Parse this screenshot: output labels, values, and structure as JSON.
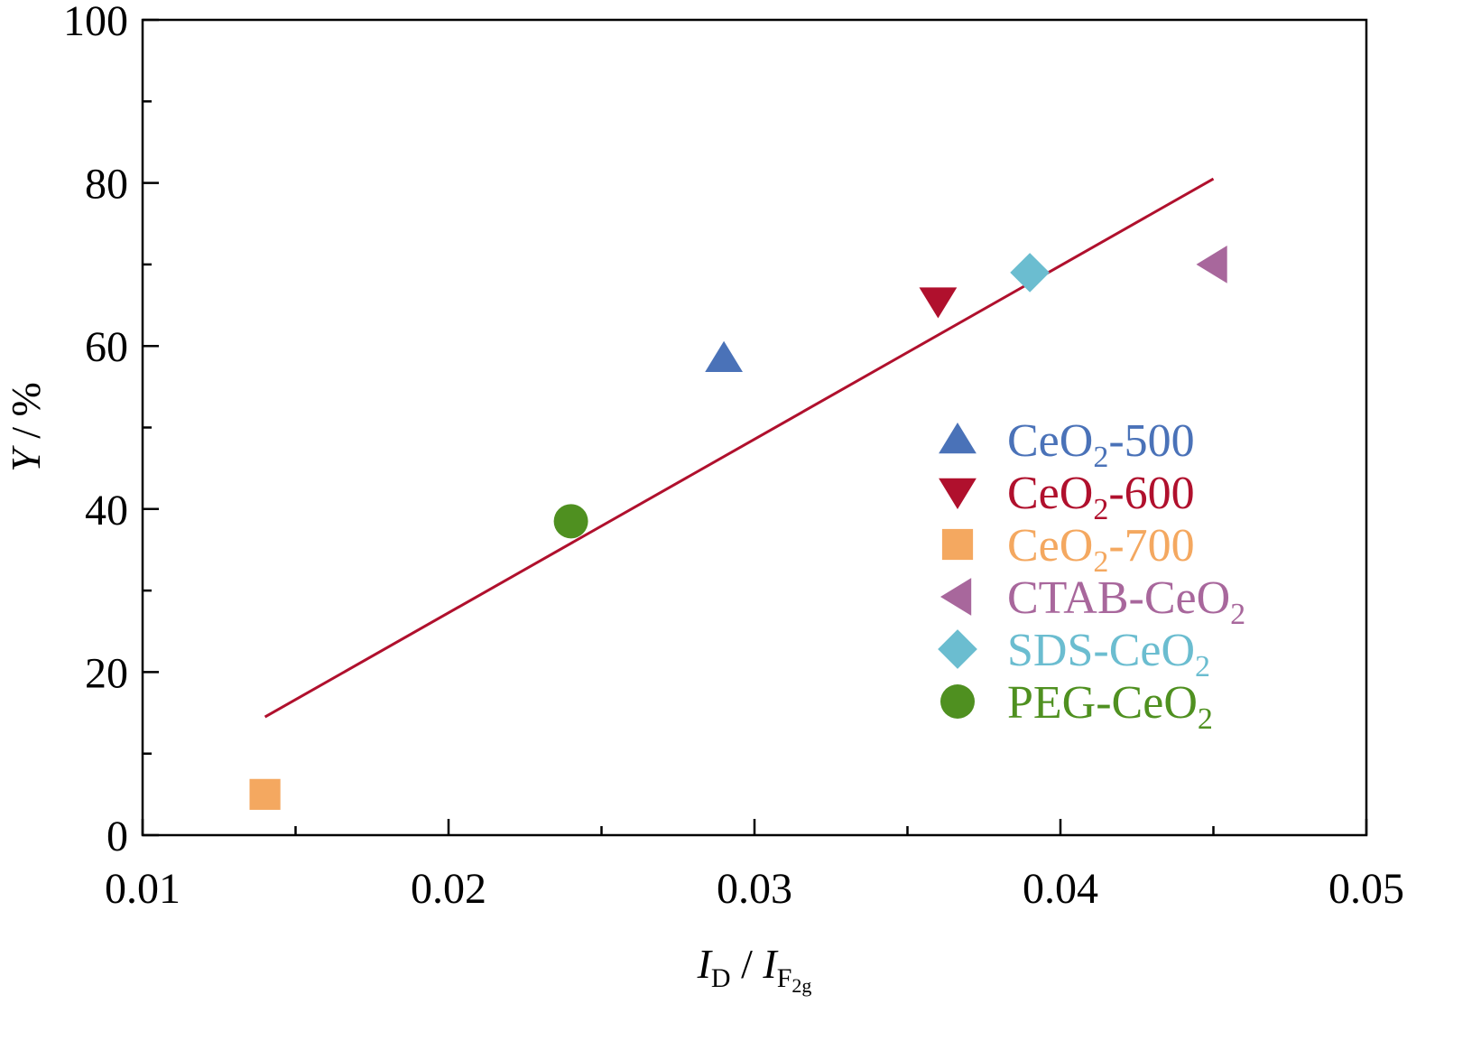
{
  "chart_data": {
    "type": "scatter",
    "xlabel": {
      "main": "I",
      "sub1": "D",
      "sep": " / ",
      "main2": "I",
      "sub2": "F",
      "subsub2": "2g"
    },
    "ylabel": {
      "var": "Y",
      "rest": " / %"
    },
    "xlim": [
      0.01,
      0.05
    ],
    "ylim": [
      0,
      100
    ],
    "xticks": [
      0.01,
      0.02,
      0.03,
      0.04,
      0.05
    ],
    "xtick_labels": [
      "0.01",
      "0.02",
      "0.03",
      "0.04",
      "0.05"
    ],
    "yticks": [
      0,
      20,
      40,
      60,
      80,
      100
    ],
    "ytick_labels": [
      "0",
      "20",
      "40",
      "60",
      "80",
      "100"
    ],
    "x_minor_step": 0.005,
    "y_minor_step": 10,
    "grid": false,
    "legend_position": "lower-right",
    "series": [
      {
        "name": "CeO2-500",
        "label": {
          "pre": "CeO",
          "sub": "2",
          "post": "-500"
        },
        "marker": "triangle-up",
        "color": "#4a72b8",
        "points": [
          [
            0.029,
            58.5
          ]
        ]
      },
      {
        "name": "CeO2-600",
        "label": {
          "pre": "CeO",
          "sub": "2",
          "post": "-600"
        },
        "marker": "triangle-down",
        "color": "#b0102d",
        "points": [
          [
            0.036,
            65.5
          ]
        ]
      },
      {
        "name": "CeO2-700",
        "label": {
          "pre": "CeO",
          "sub": "2",
          "post": "-700"
        },
        "marker": "square",
        "color": "#f4a860",
        "points": [
          [
            0.014,
            5
          ]
        ]
      },
      {
        "name": "CTAB-CeO2",
        "label": {
          "pre": "CTAB-CeO",
          "sub": "2",
          "post": ""
        },
        "marker": "triangle-left",
        "color": "#a8679c",
        "points": [
          [
            0.045,
            70
          ]
        ]
      },
      {
        "name": "SDS-CeO2",
        "label": {
          "pre": "SDS-CeO",
          "sub": "2",
          "post": ""
        },
        "marker": "diamond",
        "color": "#6bbdd0",
        "points": [
          [
            0.039,
            69
          ]
        ]
      },
      {
        "name": "PEG-CeO2",
        "label": {
          "pre": "PEG-CeO",
          "sub": "2",
          "post": ""
        },
        "marker": "circle",
        "color": "#4f9020",
        "points": [
          [
            0.024,
            38.5
          ]
        ]
      }
    ],
    "fit_line": {
      "color": "#b0102d",
      "points": [
        [
          0.014,
          14.5
        ],
        [
          0.045,
          80.5
        ]
      ]
    }
  }
}
